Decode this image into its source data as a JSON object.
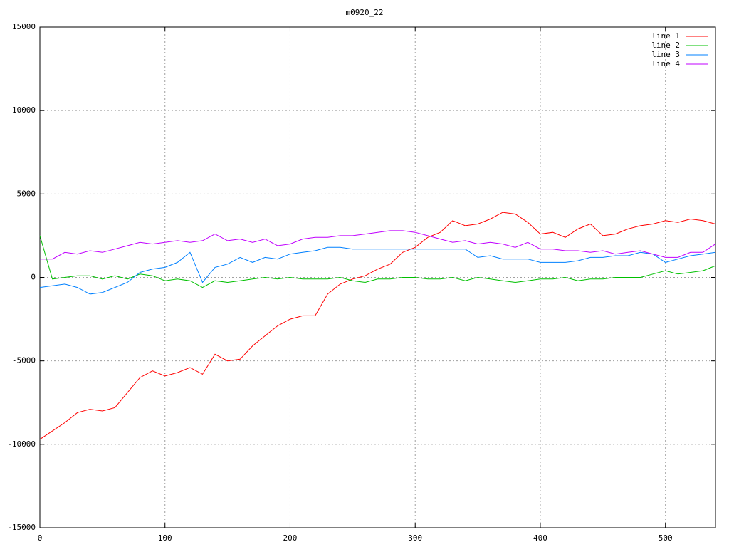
{
  "chart_data": {
    "type": "line",
    "title": "m0920_22",
    "x": [
      0,
      10,
      20,
      30,
      40,
      50,
      60,
      70,
      80,
      90,
      100,
      110,
      120,
      130,
      140,
      150,
      160,
      170,
      180,
      190,
      200,
      210,
      220,
      230,
      240,
      250,
      260,
      270,
      280,
      290,
      300,
      310,
      320,
      330,
      340,
      350,
      360,
      370,
      380,
      390,
      400,
      410,
      420,
      430,
      440,
      450,
      460,
      470,
      480,
      490,
      500,
      510,
      520,
      530,
      540
    ],
    "series": [
      {
        "name": "line 1",
        "color": "#ff0000",
        "values": [
          -9700,
          -9200,
          -8700,
          -8100,
          -7900,
          -8000,
          -7800,
          -6900,
          -6000,
          -5600,
          -5900,
          -5700,
          -5400,
          -5800,
          -4600,
          -5000,
          -4900,
          -4100,
          -3500,
          -2900,
          -2500,
          -2300,
          -2300,
          -1000,
          -400,
          -100,
          100,
          500,
          800,
          1500,
          1800,
          2400,
          2700,
          3400,
          3100,
          3200,
          3500,
          3900,
          3800,
          3300,
          2600,
          2700,
          2400,
          2900,
          3200,
          2500,
          2600,
          2900,
          3100,
          3200,
          3400,
          3300,
          3500,
          3400,
          3200
        ]
      },
      {
        "name": "line 2",
        "color": "#00c000",
        "values": [
          2500,
          -100,
          0,
          100,
          100,
          -100,
          100,
          -100,
          200,
          100,
          -200,
          -100,
          -200,
          -600,
          -200,
          -300,
          -200,
          -100,
          0,
          -100,
          0,
          -100,
          -100,
          -100,
          0,
          -200,
          -300,
          -100,
          -100,
          0,
          0,
          -100,
          -100,
          0,
          -200,
          0,
          -100,
          -200,
          -300,
          -200,
          -100,
          -100,
          0,
          -200,
          -100,
          -100,
          0,
          0,
          0,
          200,
          400,
          200,
          300,
          400,
          700
        ]
      },
      {
        "name": "line 3",
        "color": "#0080ff",
        "values": [
          -600,
          -500,
          -400,
          -600,
          -1000,
          -900,
          -600,
          -300,
          300,
          500,
          600,
          900,
          1500,
          -300,
          600,
          800,
          1200,
          900,
          1200,
          1100,
          1400,
          1500,
          1600,
          1800,
          1800,
          1700,
          1700,
          1700,
          1700,
          1700,
          1700,
          1700,
          1700,
          1700,
          1700,
          1200,
          1300,
          1100,
          1100,
          1100,
          900,
          900,
          900,
          1000,
          1200,
          1200,
          1300,
          1300,
          1500,
          1400,
          900,
          1100,
          1300,
          1400,
          1500
        ]
      },
      {
        "name": "line 4",
        "color": "#c000ff",
        "values": [
          1100,
          1100,
          1500,
          1400,
          1600,
          1500,
          1700,
          1900,
          2100,
          2000,
          2100,
          2200,
          2100,
          2200,
          2600,
          2200,
          2300,
          2100,
          2300,
          1900,
          2000,
          2300,
          2400,
          2400,
          2500,
          2500,
          2600,
          2700,
          2800,
          2800,
          2700,
          2500,
          2300,
          2100,
          2200,
          2000,
          2100,
          2000,
          1800,
          2100,
          1700,
          1700,
          1600,
          1600,
          1500,
          1600,
          1400,
          1500,
          1600,
          1400,
          1200,
          1200,
          1500,
          1500,
          2000
        ]
      }
    ],
    "xlim": [
      0,
      540
    ],
    "xticks": [
      0,
      100,
      200,
      300,
      400,
      500
    ],
    "ylim": [
      -15000,
      15000
    ],
    "yticks": [
      -15000,
      -10000,
      -5000,
      0,
      5000,
      10000,
      15000
    ],
    "grid": true,
    "legend": "top-right"
  }
}
